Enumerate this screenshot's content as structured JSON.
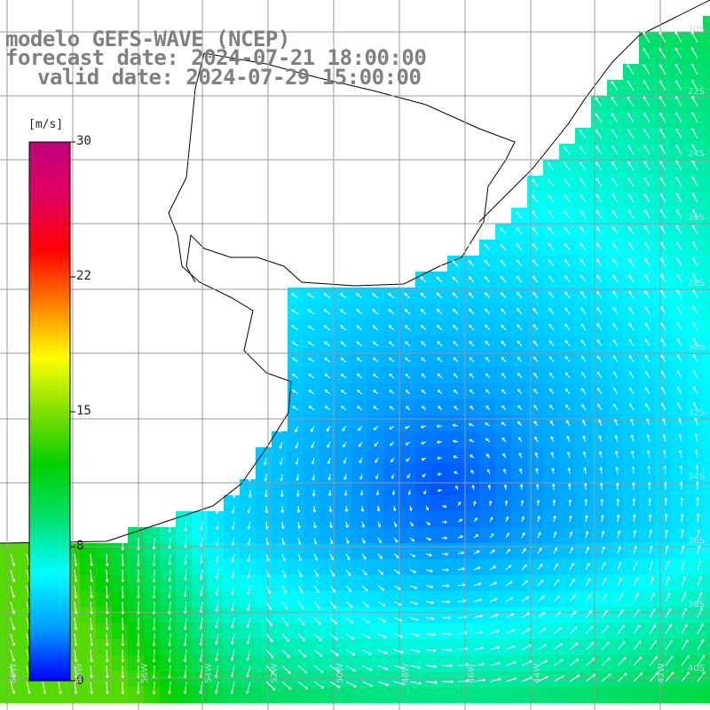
{
  "title": {
    "line1": "modelo GEFS-WAVE (NCEP)",
    "line2": "forecast date: 2024-07-21 18:00:00",
    "line3": "valid date: 2024-07-29 15:00:00"
  },
  "colorbar": {
    "unit": "[m/s]",
    "ticks": [
      "30",
      "22",
      "15",
      "8",
      "0"
    ],
    "tick_values": [
      30,
      22,
      15,
      8,
      0
    ],
    "range": [
      0,
      30
    ],
    "colors": [
      "#0000ff",
      "#00a0ff",
      "#00ffff",
      "#00e070",
      "#00d000",
      "#80e000",
      "#ffff00",
      "#ff8000",
      "#ff0000",
      "#e00060",
      "#c0007a"
    ]
  },
  "map": {
    "land_color": "#ffffff",
    "coast_color": "#000000",
    "grid_color": "#999999",
    "arrow_color": "#ffffff",
    "lat_labels": [
      "20S",
      "22S",
      "24S",
      "26S",
      "28S",
      "30S",
      "32S",
      "34S",
      "36S",
      "38S",
      "40S"
    ],
    "lon_labels": [
      "60W",
      "58W",
      "56W",
      "54W",
      "52W",
      "50W",
      "48W",
      "46W",
      "44W",
      "42W"
    ]
  }
}
